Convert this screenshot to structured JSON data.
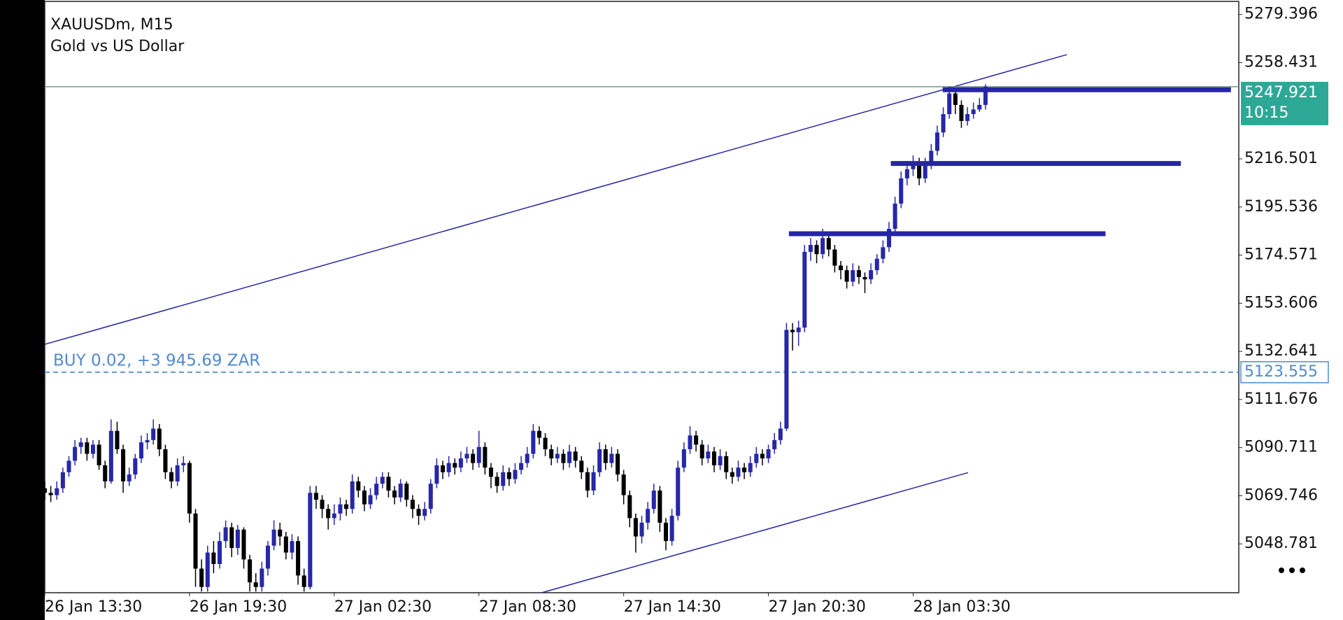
{
  "chart_data": {
    "type": "candlestick",
    "title": "XAUUSDm, M15",
    "subtitle": "Gold vs US Dollar",
    "up_color": "#2727a8",
    "down_color": "#000000",
    "xlim": [
      0,
      198
    ],
    "ylim": [
      5027.5,
      5285.7
    ],
    "yticks": [
      5048.781,
      5069.746,
      5090.711,
      5111.676,
      5132.641,
      5153.606,
      5174.571,
      5195.536,
      5216.501,
      5258.431,
      5279.396
    ],
    "xticks": [
      {
        "value": 0,
        "label": "26 Jan 13:30"
      },
      {
        "value": 24,
        "label": "26 Jan 19:30"
      },
      {
        "value": 48,
        "label": "27 Jan 02:30"
      },
      {
        "value": 72,
        "label": "27 Jan 08:30"
      },
      {
        "value": 96,
        "label": "27 Jan 14:30"
      },
      {
        "value": 120,
        "label": "27 Jan 20:30"
      },
      {
        "value": 144,
        "label": "28 Jan 03:30"
      }
    ],
    "candles": [
      [
        5073,
        5076,
        5068,
        5071
      ],
      [
        5071,
        5074,
        5067,
        5070
      ],
      [
        5070,
        5076,
        5068,
        5073
      ],
      [
        5073,
        5082,
        5071,
        5080
      ],
      [
        5080,
        5087,
        5078,
        5085
      ],
      [
        5085,
        5094,
        5083,
        5091
      ],
      [
        5091,
        5095,
        5088,
        5093
      ],
      [
        5093,
        5095,
        5085,
        5088
      ],
      [
        5088,
        5094,
        5086,
        5092
      ],
      [
        5092,
        5094,
        5081,
        5083
      ],
      [
        5083,
        5085,
        5073,
        5076
      ],
      [
        5076,
        5103,
        5075,
        5098
      ],
      [
        5098,
        5102,
        5088,
        5090
      ],
      [
        5090,
        5092,
        5071,
        5076
      ],
      [
        5076,
        5082,
        5074,
        5079
      ],
      [
        5079,
        5088,
        5077,
        5086
      ],
      [
        5086,
        5096,
        5084,
        5093
      ],
      [
        5093,
        5097,
        5090,
        5094
      ],
      [
        5094,
        5103,
        5092,
        5099
      ],
      [
        5099,
        5101,
        5087,
        5090
      ],
      [
        5090,
        5092,
        5077,
        5080
      ],
      [
        5080,
        5082,
        5073,
        5076
      ],
      [
        5076,
        5086,
        5074,
        5083
      ],
      [
        5083,
        5087,
        5080,
        5084
      ],
      [
        5084,
        5085,
        5058,
        5062
      ],
      [
        5062,
        5064,
        5030,
        5038
      ],
      [
        5038,
        5042,
        5028,
        5030
      ],
      [
        5030,
        5048,
        5028,
        5045
      ],
      [
        5045,
        5050,
        5036,
        5040
      ],
      [
        5040,
        5054,
        5038,
        5050
      ],
      [
        5050,
        5059,
        5047,
        5056
      ],
      [
        5056,
        5058,
        5043,
        5047
      ],
      [
        5047,
        5057,
        5044,
        5055
      ],
      [
        5055,
        5056,
        5038,
        5042
      ],
      [
        5042,
        5044,
        5028,
        5032
      ],
      [
        5032,
        5036,
        5028,
        5030
      ],
      [
        5030,
        5041,
        5028,
        5038
      ],
      [
        5038,
        5050,
        5035,
        5048
      ],
      [
        5048,
        5059,
        5046,
        5055
      ],
      [
        5055,
        5058,
        5048,
        5052
      ],
      [
        5052,
        5054,
        5042,
        5045
      ],
      [
        5045,
        5053,
        5042,
        5050
      ],
      [
        5050,
        5052,
        5031,
        5035
      ],
      [
        5035,
        5038,
        5028,
        5030
      ],
      [
        5030,
        5074,
        5029,
        5071
      ],
      [
        5071,
        5074,
        5064,
        5068
      ],
      [
        5068,
        5070,
        5060,
        5064
      ],
      [
        5064,
        5066,
        5055,
        5060
      ],
      [
        5060,
        5066,
        5057,
        5062
      ],
      [
        5062,
        5069,
        5059,
        5066
      ],
      [
        5066,
        5068,
        5061,
        5064
      ],
      [
        5064,
        5079,
        5062,
        5076
      ],
      [
        5076,
        5078,
        5069,
        5072
      ],
      [
        5072,
        5074,
        5063,
        5066
      ],
      [
        5066,
        5073,
        5064,
        5070
      ],
      [
        5070,
        5078,
        5068,
        5075
      ],
      [
        5075,
        5080,
        5073,
        5078
      ],
      [
        5078,
        5080,
        5069,
        5072
      ],
      [
        5072,
        5074,
        5066,
        5069
      ],
      [
        5069,
        5077,
        5067,
        5075
      ],
      [
        5075,
        5076,
        5065,
        5068
      ],
      [
        5068,
        5070,
        5060,
        5064
      ],
      [
        5064,
        5066,
        5057,
        5061
      ],
      [
        5061,
        5067,
        5059,
        5064
      ],
      [
        5064,
        5077,
        5062,
        5075
      ],
      [
        5075,
        5086,
        5073,
        5083
      ],
      [
        5083,
        5085,
        5077,
        5080
      ],
      [
        5080,
        5087,
        5078,
        5084
      ],
      [
        5084,
        5086,
        5079,
        5082
      ],
      [
        5082,
        5089,
        5080,
        5086
      ],
      [
        5086,
        5091,
        5084,
        5088
      ],
      [
        5088,
        5090,
        5081,
        5084
      ],
      [
        5084,
        5098,
        5082,
        5091
      ],
      [
        5091,
        5093,
        5079,
        5082
      ],
      [
        5082,
        5084,
        5073,
        5078
      ],
      [
        5078,
        5080,
        5071,
        5074
      ],
      [
        5074,
        5083,
        5072,
        5080
      ],
      [
        5080,
        5082,
        5074,
        5077
      ],
      [
        5077,
        5084,
        5075,
        5081
      ],
      [
        5081,
        5087,
        5079,
        5084
      ],
      [
        5084,
        5091,
        5082,
        5088
      ],
      [
        5088,
        5101,
        5086,
        5098
      ],
      [
        5098,
        5100,
        5092,
        5095
      ],
      [
        5095,
        5097,
        5087,
        5090
      ],
      [
        5090,
        5092,
        5083,
        5086
      ],
      [
        5086,
        5091,
        5084,
        5088
      ],
      [
        5088,
        5090,
        5081,
        5084
      ],
      [
        5084,
        5092,
        5082,
        5089
      ],
      [
        5089,
        5091,
        5082,
        5085
      ],
      [
        5085,
        5087,
        5077,
        5080
      ],
      [
        5080,
        5082,
        5069,
        5072
      ],
      [
        5072,
        5083,
        5070,
        5080
      ],
      [
        5080,
        5093,
        5078,
        5090
      ],
      [
        5090,
        5092,
        5081,
        5084
      ],
      [
        5084,
        5091,
        5082,
        5088
      ],
      [
        5088,
        5090,
        5076,
        5079
      ],
      [
        5079,
        5081,
        5066,
        5070
      ],
      [
        5070,
        5072,
        5056,
        5060
      ],
      [
        5060,
        5062,
        5045,
        5052
      ],
      [
        5052,
        5061,
        5049,
        5058
      ],
      [
        5058,
        5067,
        5055,
        5064
      ],
      [
        5064,
        5075,
        5062,
        5072
      ],
      [
        5072,
        5074,
        5054,
        5058
      ],
      [
        5058,
        5060,
        5046,
        5050
      ],
      [
        5050,
        5064,
        5048,
        5061
      ],
      [
        5061,
        5085,
        5059,
        5082
      ],
      [
        5082,
        5093,
        5080,
        5090
      ],
      [
        5090,
        5100,
        5088,
        5096
      ],
      [
        5096,
        5098,
        5089,
        5092
      ],
      [
        5092,
        5094,
        5083,
        5086
      ],
      [
        5086,
        5092,
        5084,
        5089
      ],
      [
        5089,
        5091,
        5080,
        5083
      ],
      [
        5083,
        5090,
        5081,
        5087
      ],
      [
        5087,
        5089,
        5077,
        5080
      ],
      [
        5080,
        5082,
        5075,
        5078
      ],
      [
        5078,
        5085,
        5076,
        5082
      ],
      [
        5082,
        5084,
        5077,
        5080
      ],
      [
        5080,
        5087,
        5078,
        5084
      ],
      [
        5084,
        5091,
        5082,
        5088
      ],
      [
        5088,
        5090,
        5083,
        5086
      ],
      [
        5086,
        5092,
        5084,
        5090
      ],
      [
        5090,
        5097,
        5088,
        5094
      ],
      [
        5094,
        5102,
        5092,
        5099
      ],
      [
        5099,
        5145,
        5098,
        5142
      ],
      [
        5142,
        5145,
        5133,
        5141
      ],
      [
        5141,
        5146,
        5135,
        5143
      ],
      [
        5143,
        5179,
        5141,
        5176
      ],
      [
        5176,
        5182,
        5172,
        5179
      ],
      [
        5179,
        5181,
        5171,
        5175
      ],
      [
        5175,
        5186,
        5173,
        5182
      ],
      [
        5182,
        5184,
        5174,
        5177
      ],
      [
        5177,
        5179,
        5167,
        5170
      ],
      [
        5170,
        5172,
        5164,
        5168
      ],
      [
        5168,
        5170,
        5160,
        5163
      ],
      [
        5163,
        5171,
        5161,
        5168
      ],
      [
        5168,
        5170,
        5162,
        5165
      ],
      [
        5165,
        5167,
        5158,
        5164
      ],
      [
        5164,
        5171,
        5162,
        5168
      ],
      [
        5168,
        5175,
        5166,
        5173
      ],
      [
        5173,
        5181,
        5171,
        5178
      ],
      [
        5178,
        5189,
        5176,
        5186
      ],
      [
        5186,
        5200,
        5184,
        5197
      ],
      [
        5197,
        5211,
        5195,
        5208
      ],
      [
        5208,
        5215,
        5205,
        5212
      ],
      [
        5212,
        5218,
        5209,
        5215
      ],
      [
        5215,
        5217,
        5205,
        5208
      ],
      [
        5208,
        5217,
        5206,
        5214
      ],
      [
        5214,
        5223,
        5212,
        5220
      ],
      [
        5220,
        5231,
        5218,
        5228
      ],
      [
        5228,
        5239,
        5226,
        5236
      ],
      [
        5236,
        5248,
        5234,
        5245
      ],
      [
        5245,
        5247,
        5236,
        5240
      ],
      [
        5240,
        5242,
        5230,
        5233
      ],
      [
        5233,
        5239,
        5231,
        5236
      ],
      [
        5236,
        5241,
        5234,
        5238
      ],
      [
        5238,
        5243,
        5237,
        5240
      ],
      [
        5240,
        5249,
        5238,
        5247.921
      ]
    ],
    "hlines": [
      {
        "price": 5246.6,
        "from": 148.9,
        "to": 196.7
      },
      {
        "price": 5214.5,
        "from": 140.3,
        "to": 188.4
      },
      {
        "price": 5183.9,
        "from": 123.4,
        "to": 175.9
      }
    ],
    "line_color": "#2525a5",
    "trendlines": [
      {
        "x": [
          0,
          169.5
        ],
        "y": [
          5135.7,
          5261.9
        ]
      },
      {
        "x": [
          82.4,
          153.1
        ],
        "y": [
          5027.5,
          5079.8
        ]
      }
    ],
    "price": 5247.921,
    "countdown": "10:15",
    "price_color": "#2ea896",
    "position": {
      "label": "BUY 0.02,  +3 945.69 ZAR",
      "price": 5123.555,
      "color": "#4f8ad0"
    }
  }
}
